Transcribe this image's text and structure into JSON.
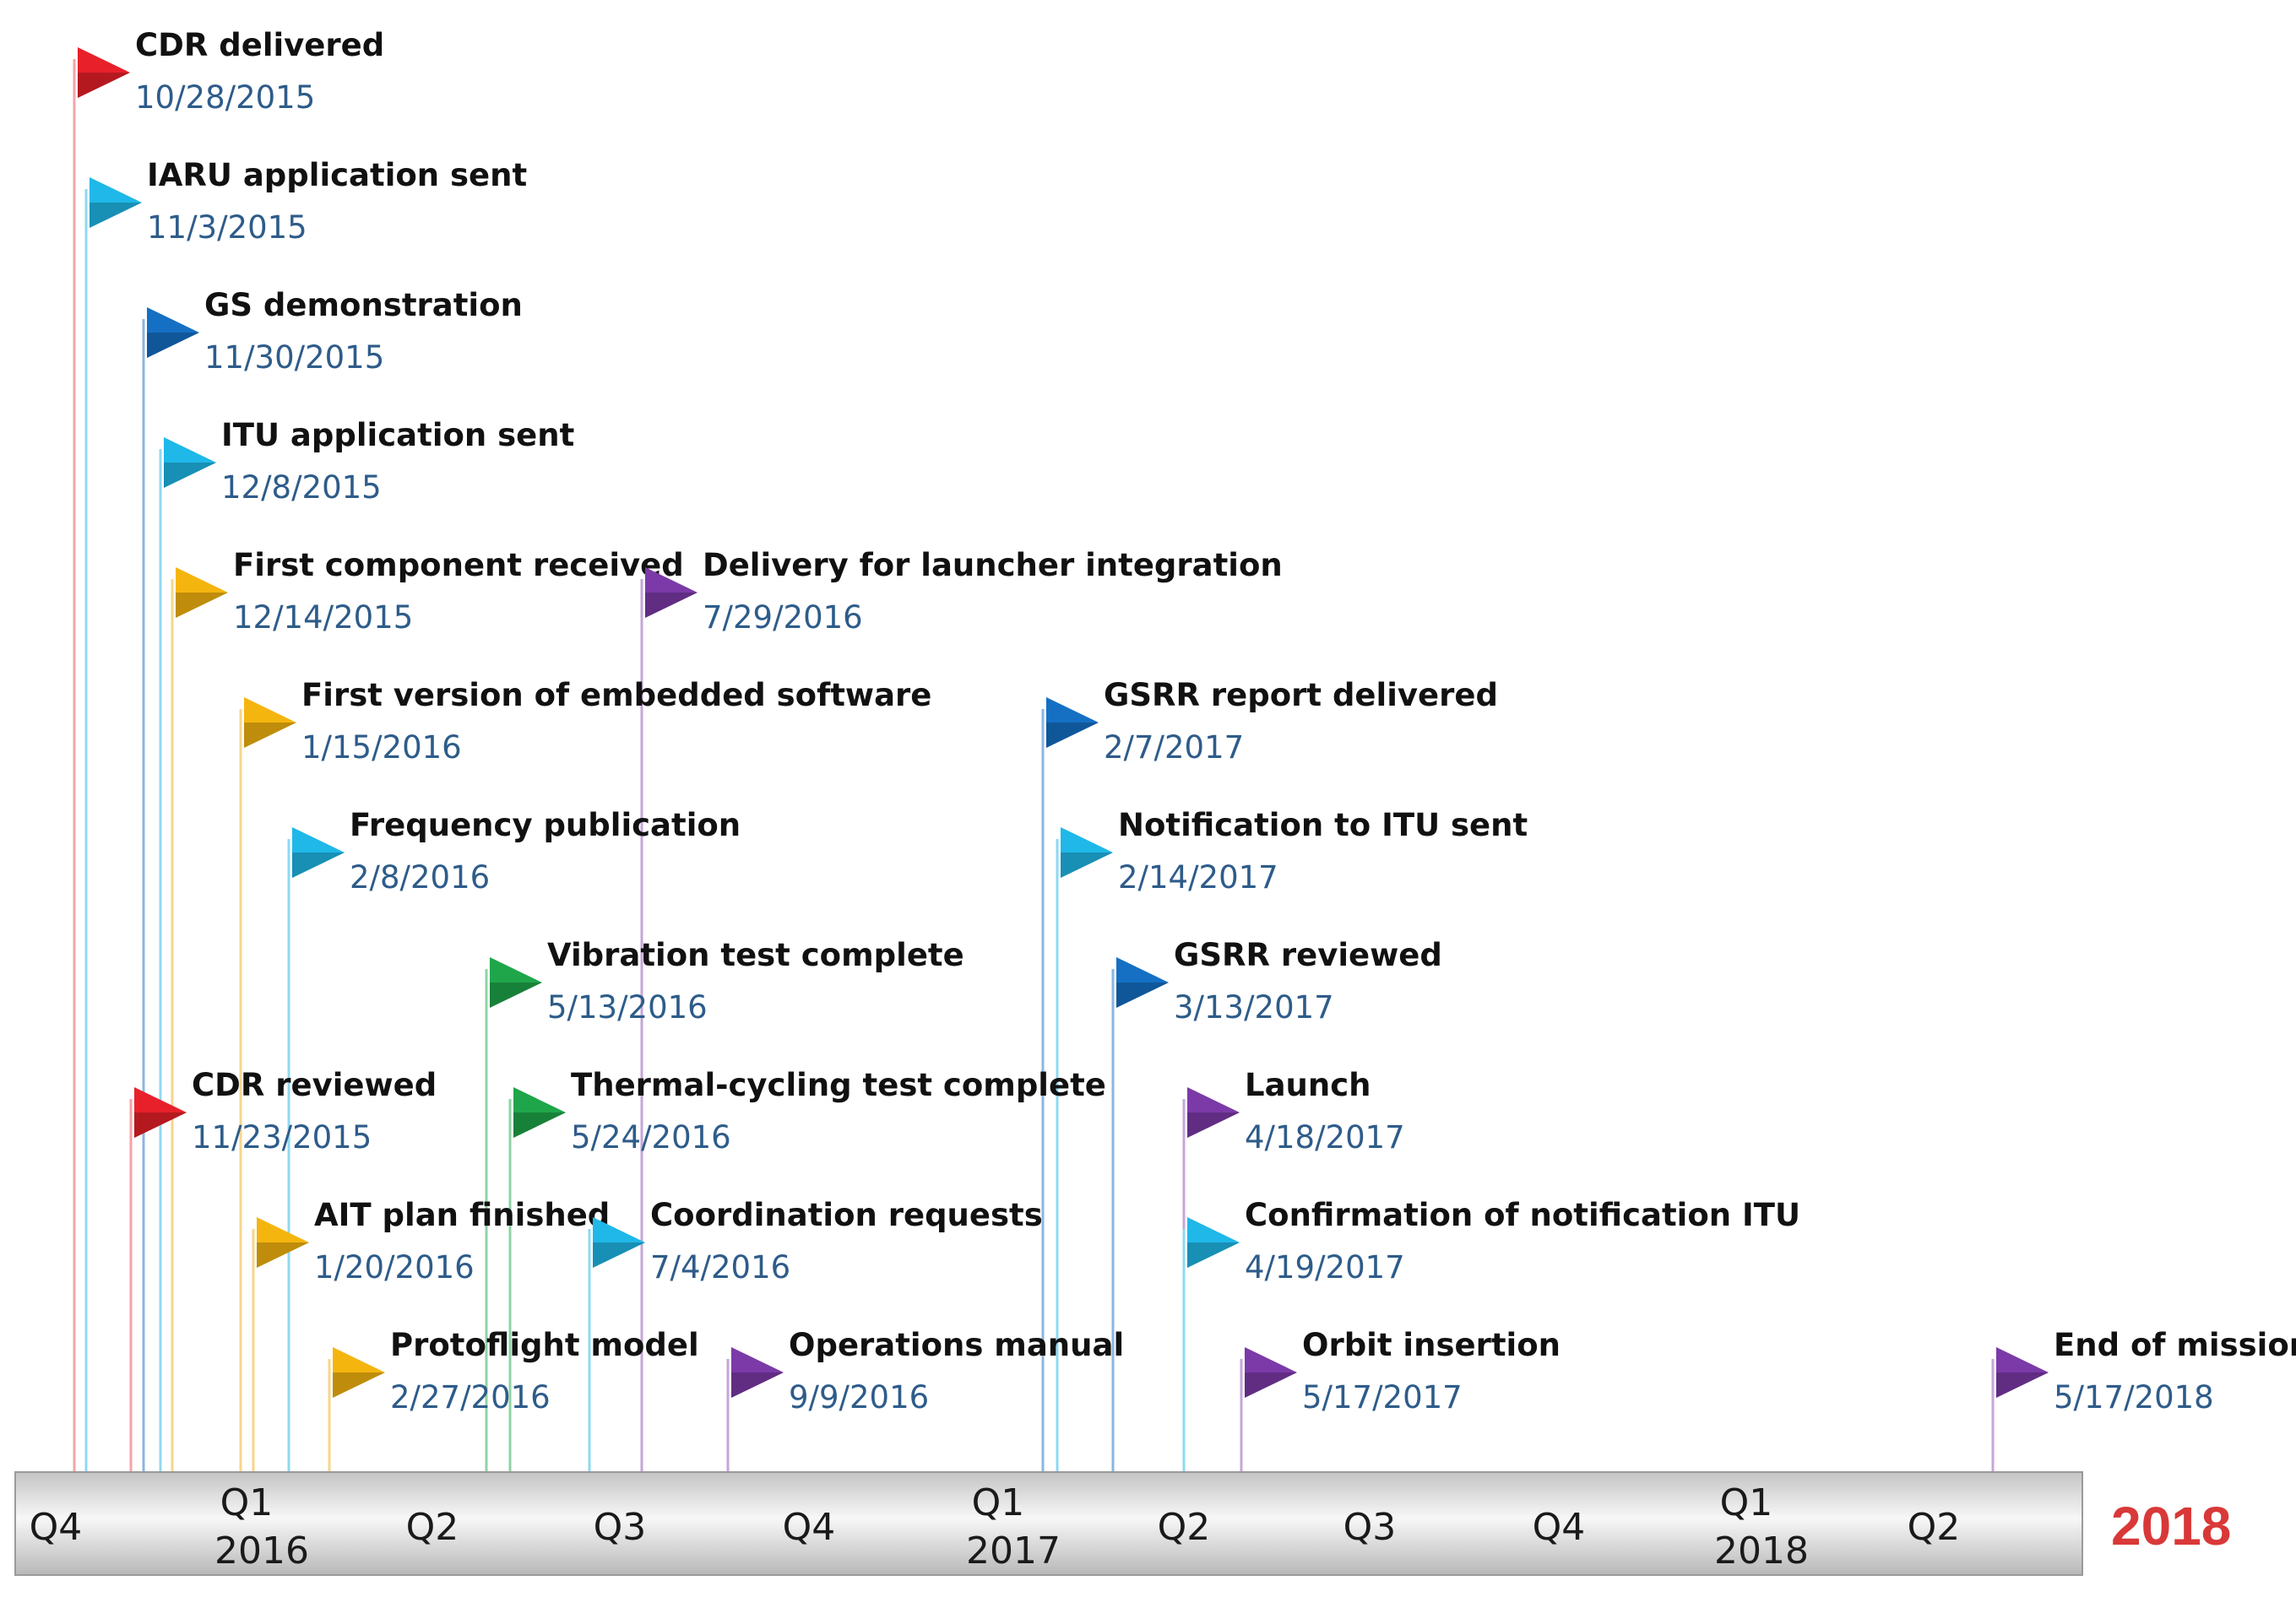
{
  "colors": {
    "red": "#e8202a",
    "cyan": "#1fb8e8",
    "blue": "#1570c4",
    "gold": "#f5b50f",
    "purple": "#7b3aa8",
    "green": "#1fa64a",
    "date_text": "#2e5c8a",
    "final_year": "#d93838"
  },
  "milestones": [
    {
      "title": "CDR delivered",
      "date": "10/28/2015",
      "color": "red"
    },
    {
      "title": "IARU application sent",
      "date": "11/3/2015",
      "color": "cyan"
    },
    {
      "title": "GS demonstration",
      "date": "11/30/2015",
      "color": "blue"
    },
    {
      "title": "ITU application sent",
      "date": "12/8/2015",
      "color": "cyan"
    },
    {
      "title": "First component received",
      "date": "12/14/2015",
      "color": "gold"
    },
    {
      "title": "Delivery for launcher integration",
      "date": "7/29/2016",
      "color": "purple"
    },
    {
      "title": "First version of embedded software",
      "date": "1/15/2016",
      "color": "gold"
    },
    {
      "title": "GSRR report delivered",
      "date": "2/7/2017",
      "color": "blue"
    },
    {
      "title": "Frequency publication",
      "date": "2/8/2016",
      "color": "cyan"
    },
    {
      "title": "Notification to ITU sent",
      "date": "2/14/2017",
      "color": "cyan"
    },
    {
      "title": "Vibration test complete",
      "date": "5/13/2016",
      "color": "green"
    },
    {
      "title": "GSRR reviewed",
      "date": "3/13/2017",
      "color": "blue"
    },
    {
      "title": "CDR reviewed",
      "date": "11/23/2015",
      "color": "red"
    },
    {
      "title": "Thermal-cycling test complete",
      "date": "5/24/2016",
      "color": "green"
    },
    {
      "title": "Launch",
      "date": "4/18/2017",
      "color": "purple"
    },
    {
      "title": "AIT plan finished",
      "date": "1/20/2016",
      "color": "gold"
    },
    {
      "title": "Coordination requests",
      "date": "7/4/2016",
      "color": "cyan"
    },
    {
      "title": "Confirmation of notification ITU",
      "date": "4/19/2017",
      "color": "cyan"
    },
    {
      "title": "Protoflight model",
      "date": "2/27/2016",
      "color": "gold"
    },
    {
      "title": "Operations manual",
      "date": "9/9/2016",
      "color": "purple"
    },
    {
      "title": "Orbit insertion",
      "date": "5/17/2017",
      "color": "purple"
    },
    {
      "title": "End of mission",
      "date": "5/17/2018",
      "color": "purple"
    }
  ],
  "axis": {
    "quarters": [
      {
        "label": "Q4",
        "year": ""
      },
      {
        "label": "Q1",
        "year": "2016"
      },
      {
        "label": "Q2",
        "year": ""
      },
      {
        "label": "Q3",
        "year": ""
      },
      {
        "label": "Q4",
        "year": ""
      },
      {
        "label": "Q1",
        "year": "2017"
      },
      {
        "label": "Q2",
        "year": ""
      },
      {
        "label": "Q3",
        "year": ""
      },
      {
        "label": "Q4",
        "year": ""
      },
      {
        "label": "Q1",
        "year": "2018"
      },
      {
        "label": "Q2",
        "year": ""
      }
    ],
    "final_year": "2018"
  }
}
